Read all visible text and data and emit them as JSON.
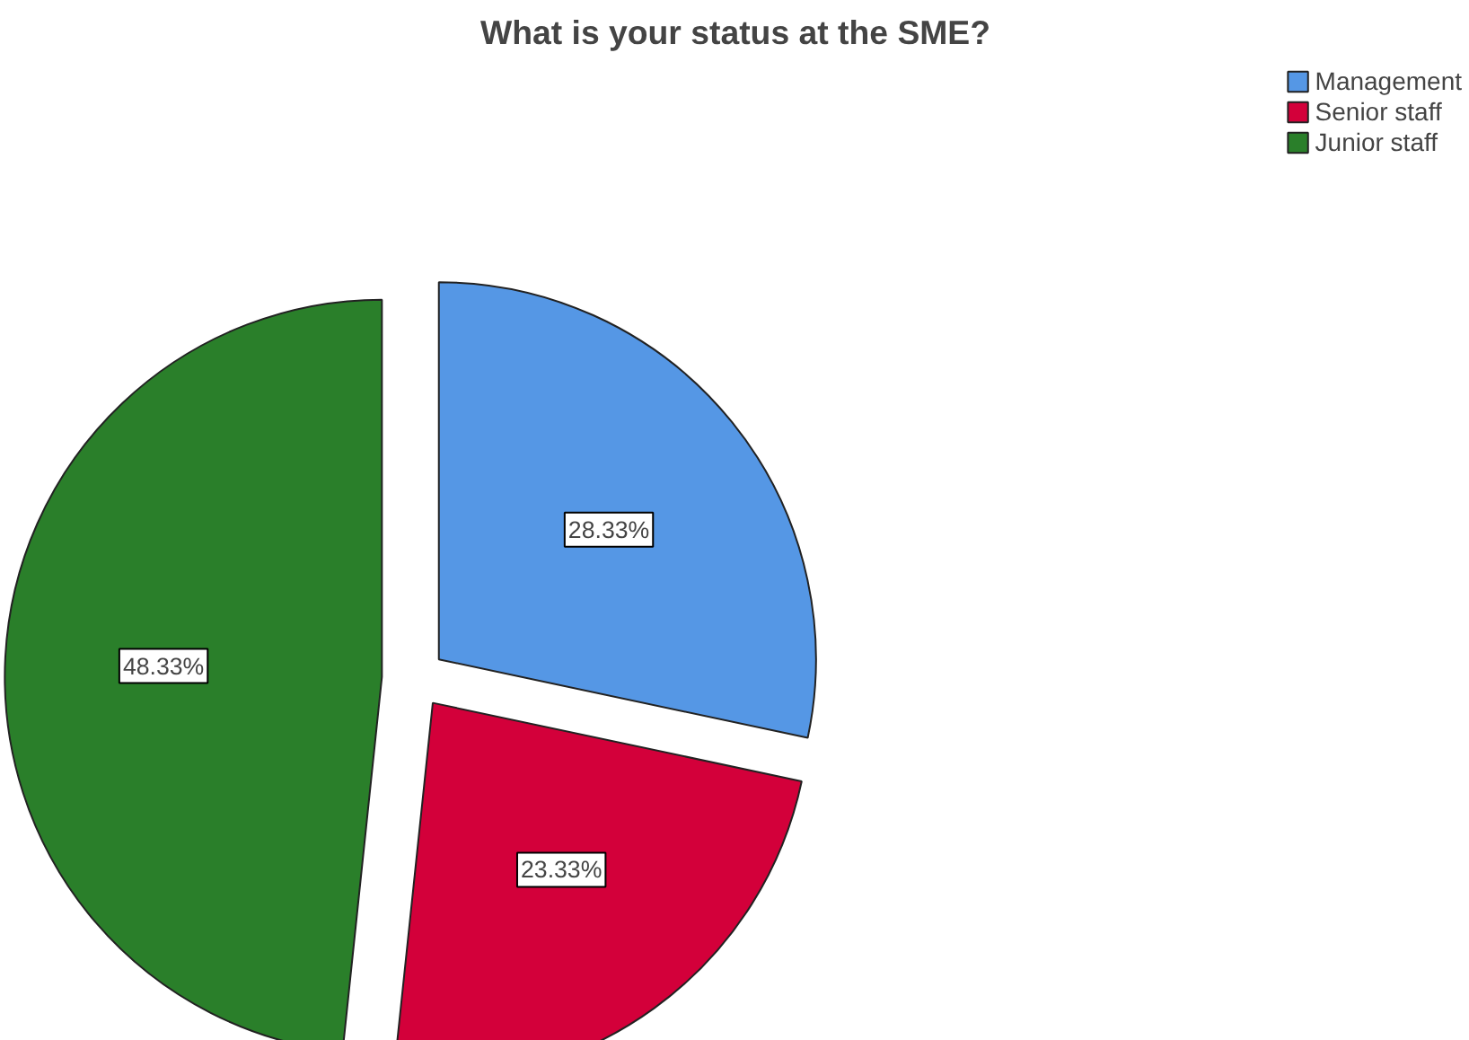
{
  "chart_data": {
    "type": "pie",
    "title": "What is your status at the SME?",
    "categories": [
      "Management",
      "Senior staff",
      "Junior staff"
    ],
    "values": [
      28.33,
      23.33,
      48.33
    ],
    "colors": [
      "#5597e5",
      "#d3003a",
      "#2a7f2a"
    ],
    "value_labels": [
      "28.33%",
      "23.33%",
      "48.33%"
    ],
    "legend": "top right"
  }
}
